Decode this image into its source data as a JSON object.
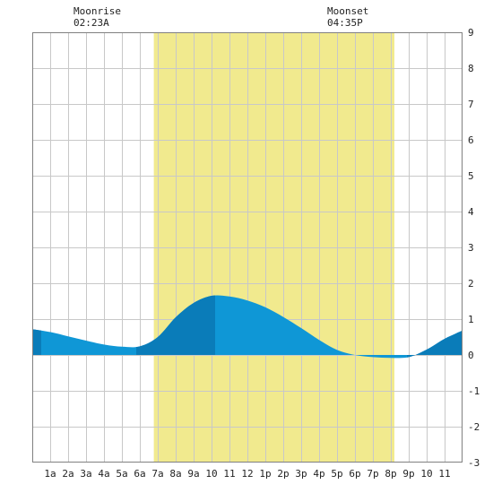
{
  "chart_data": {
    "type": "area",
    "title": "",
    "xlabel": "",
    "ylabel": "",
    "x_hours": [
      0,
      1,
      2,
      3,
      4,
      5,
      6,
      7,
      8,
      9,
      10,
      11,
      12,
      13,
      14,
      15,
      16,
      17,
      18,
      19,
      20,
      21,
      22,
      23,
      24
    ],
    "values": [
      0.72,
      0.64,
      0.52,
      0.4,
      0.29,
      0.23,
      0.24,
      0.5,
      1.05,
      1.45,
      1.65,
      1.63,
      1.52,
      1.33,
      1.06,
      0.75,
      0.42,
      0.14,
      0.0,
      -0.06,
      -0.08,
      -0.06,
      0.15,
      0.45,
      0.68
    ],
    "ylim": [
      -3,
      9
    ],
    "xlim": [
      0,
      24
    ],
    "y_ticks": [
      "-3",
      "-2",
      "-1",
      "0",
      "1",
      "2",
      "3",
      "4",
      "5",
      "6",
      "7",
      "8",
      "9"
    ],
    "x_ticks": [
      "1a",
      "2a",
      "3a",
      "4a",
      "5a",
      "6a",
      "7a",
      "8a",
      "9a",
      "10",
      "11",
      "12",
      "1p",
      "2p",
      "3p",
      "4p",
      "5p",
      "6p",
      "7p",
      "8p",
      "9p",
      "10",
      "11"
    ],
    "daylight": {
      "start_hour": 6.78,
      "end_hour": 20.2
    },
    "darker_bands_hours": [
      [
        0,
        0.5
      ],
      [
        5.8,
        10.2
      ],
      [
        20.9,
        24
      ]
    ],
    "grid": true,
    "annotations": {
      "moonrise": {
        "label": "Moonrise",
        "time": "02:23A",
        "hour": 2.38
      },
      "moonset": {
        "label": "Moonset",
        "time": "04:35P",
        "hour": 16.58
      }
    },
    "colors": {
      "daylight": "#f1ea8e",
      "water": "#0f97d6",
      "water_dark": "#0a7cb9",
      "grid": "#c8c8c8",
      "border": "#808080"
    }
  }
}
